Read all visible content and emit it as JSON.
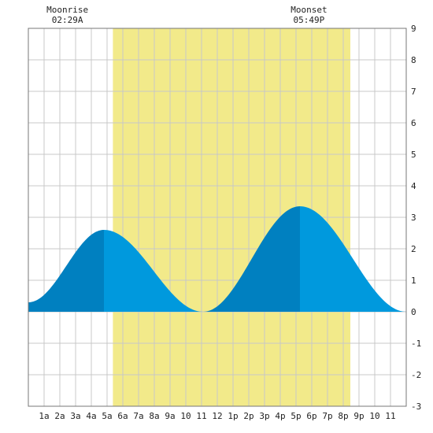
{
  "chart_data": {
    "type": "area",
    "title": "",
    "xlabel": "",
    "ylabel": "",
    "xlim": [
      0,
      24
    ],
    "ylim": [
      -3,
      9
    ],
    "grid": true,
    "x_tick_labels": [
      "1a",
      "2a",
      "3a",
      "4a",
      "5a",
      "6a",
      "7a",
      "8a",
      "9a",
      "10",
      "11",
      "12",
      "1p",
      "2p",
      "3p",
      "4p",
      "5p",
      "6p",
      "7p",
      "8p",
      "9p",
      "10",
      "11"
    ],
    "y_tick_labels": [
      "9",
      "8",
      "7",
      "6",
      "5",
      "4",
      "3",
      "2",
      "1",
      "0",
      "-1",
      "-2",
      "-3"
    ],
    "daylight": {
      "start_hour": 5.37,
      "end_hour": 20.45,
      "color": "#f2ea8a"
    },
    "tide_series": {
      "name": "",
      "x": [
        0,
        4.8,
        11.1,
        17.25,
        24
      ],
      "y": [
        0.3,
        2.6,
        0.0,
        3.35,
        0.0
      ],
      "note": "extrema: high 04:48 2.6, low 11:06 0.0, high 17:15 3.35"
    },
    "colors": {
      "rising": "#0080c0",
      "falling": "#0099dd",
      "grid": "#c8c8c8",
      "border": "#777777",
      "background": "#ffffff"
    },
    "moon_events": [
      {
        "label": "Moonrise",
        "time": "02:29A",
        "hour": 2.48
      },
      {
        "label": "Moonset",
        "time": "05:49P",
        "hour": 17.82
      }
    ]
  }
}
